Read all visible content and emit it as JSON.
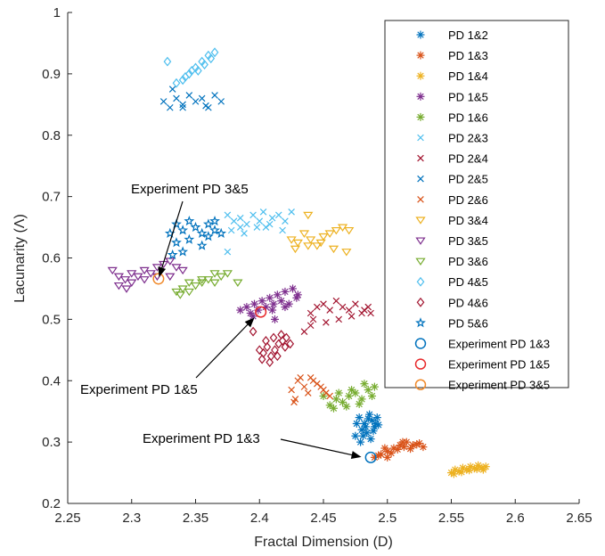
{
  "chart_data": {
    "type": "scatter",
    "xlabel": "Fractal Dimension (D)",
    "ylabel": "Lacunarity (Λ)",
    "xlim": [
      2.25,
      2.65
    ],
    "ylim": [
      0.2,
      1.0
    ],
    "xticks": [
      "2.25",
      "2.3",
      "2.35",
      "2.4",
      "2.45",
      "2.5",
      "2.55",
      "2.6",
      "2.65"
    ],
    "yticks": [
      "0.2",
      "0.3",
      "0.4",
      "0.5",
      "0.6",
      "0.7",
      "0.8",
      "0.9",
      "1"
    ],
    "grid": false,
    "legend_position": "top-right",
    "series": [
      {
        "name": "PD 1&2",
        "marker": "asterisk",
        "color": "#0072BD",
        "points": [
          [
            2.478,
            0.34
          ],
          [
            2.482,
            0.33
          ],
          [
            2.486,
            0.345
          ],
          [
            2.49,
            0.325
          ],
          [
            2.475,
            0.31
          ],
          [
            2.48,
            0.32
          ],
          [
            2.484,
            0.315
          ],
          [
            2.488,
            0.335
          ],
          [
            2.492,
            0.34
          ],
          [
            2.476,
            0.33
          ],
          [
            2.483,
            0.325
          ],
          [
            2.487,
            0.305
          ],
          [
            2.491,
            0.33
          ],
          [
            2.479,
            0.3
          ],
          [
            2.485,
            0.338
          ],
          [
            2.489,
            0.318
          ],
          [
            2.493,
            0.328
          ],
          [
            2.481,
            0.31
          ]
        ]
      },
      {
        "name": "PD 1&3",
        "marker": "asterisk",
        "color": "#D95319",
        "points": [
          [
            2.49,
            0.275
          ],
          [
            2.495,
            0.28
          ],
          [
            2.5,
            0.285
          ],
          [
            2.505,
            0.29
          ],
          [
            2.51,
            0.295
          ],
          [
            2.515,
            0.3
          ],
          [
            2.52,
            0.295
          ],
          [
            2.525,
            0.298
          ],
          [
            2.498,
            0.29
          ],
          [
            2.503,
            0.282
          ],
          [
            2.508,
            0.288
          ],
          [
            2.513,
            0.292
          ],
          [
            2.518,
            0.289
          ],
          [
            2.523,
            0.296
          ],
          [
            2.493,
            0.278
          ],
          [
            2.5,
            0.275
          ],
          [
            2.512,
            0.3
          ],
          [
            2.528,
            0.292
          ]
        ]
      },
      {
        "name": "PD 1&4",
        "marker": "asterisk",
        "color": "#EDB120",
        "points": [
          [
            2.55,
            0.25
          ],
          [
            2.553,
            0.255
          ],
          [
            2.556,
            0.252
          ],
          [
            2.559,
            0.258
          ],
          [
            2.562,
            0.255
          ],
          [
            2.565,
            0.26
          ],
          [
            2.568,
            0.257
          ],
          [
            2.571,
            0.262
          ],
          [
            2.574,
            0.258
          ],
          [
            2.577,
            0.26
          ],
          [
            2.552,
            0.248
          ],
          [
            2.558,
            0.251
          ],
          [
            2.564,
            0.254
          ],
          [
            2.57,
            0.256
          ],
          [
            2.575,
            0.255
          ]
        ]
      },
      {
        "name": "PD 1&5",
        "marker": "asterisk",
        "color": "#7E2F8E",
        "points": [
          [
            2.39,
            0.52
          ],
          [
            2.393,
            0.51
          ],
          [
            2.396,
            0.525
          ],
          [
            2.399,
            0.515
          ],
          [
            2.402,
            0.53
          ],
          [
            2.405,
            0.52
          ],
          [
            2.408,
            0.535
          ],
          [
            2.411,
            0.525
          ],
          [
            2.414,
            0.54
          ],
          [
            2.417,
            0.53
          ],
          [
            2.42,
            0.545
          ],
          [
            2.423,
            0.525
          ],
          [
            2.426,
            0.55
          ],
          [
            2.429,
            0.535
          ],
          [
            2.385,
            0.515
          ],
          [
            2.395,
            0.505
          ],
          [
            2.41,
            0.515
          ],
          [
            2.42,
            0.52
          ],
          [
            2.43,
            0.54
          ],
          [
            2.412,
            0.5
          ]
        ]
      },
      {
        "name": "PD 1&6",
        "marker": "asterisk",
        "color": "#77AC30",
        "points": [
          [
            2.455,
            0.36
          ],
          [
            2.46,
            0.37
          ],
          [
            2.465,
            0.365
          ],
          [
            2.47,
            0.375
          ],
          [
            2.475,
            0.38
          ],
          [
            2.48,
            0.37
          ],
          [
            2.485,
            0.385
          ],
          [
            2.49,
            0.39
          ],
          [
            2.458,
            0.355
          ],
          [
            2.468,
            0.358
          ],
          [
            2.478,
            0.362
          ],
          [
            2.488,
            0.375
          ],
          [
            2.462,
            0.38
          ],
          [
            2.472,
            0.385
          ],
          [
            2.482,
            0.395
          ],
          [
            2.45,
            0.375
          ]
        ]
      },
      {
        "name": "PD 2&3",
        "marker": "x",
        "color": "#4DBEEE",
        "points": [
          [
            2.375,
            0.67
          ],
          [
            2.38,
            0.66
          ],
          [
            2.385,
            0.665
          ],
          [
            2.39,
            0.655
          ],
          [
            2.395,
            0.67
          ],
          [
            2.4,
            0.66
          ],
          [
            2.405,
            0.65
          ],
          [
            2.41,
            0.665
          ],
          [
            2.415,
            0.67
          ],
          [
            2.42,
            0.66
          ],
          [
            2.425,
            0.675
          ],
          [
            2.378,
            0.645
          ],
          [
            2.388,
            0.64
          ],
          [
            2.398,
            0.65
          ],
          [
            2.408,
            0.655
          ],
          [
            2.418,
            0.645
          ],
          [
            2.375,
            0.61
          ],
          [
            2.385,
            0.65
          ],
          [
            2.403,
            0.675
          ]
        ]
      },
      {
        "name": "PD 2&4",
        "marker": "x",
        "color": "#A2142F",
        "points": [
          [
            2.44,
            0.51
          ],
          [
            2.445,
            0.52
          ],
          [
            2.45,
            0.525
          ],
          [
            2.455,
            0.515
          ],
          [
            2.46,
            0.53
          ],
          [
            2.465,
            0.52
          ],
          [
            2.47,
            0.515
          ],
          [
            2.475,
            0.525
          ],
          [
            2.48,
            0.51
          ],
          [
            2.485,
            0.52
          ],
          [
            2.442,
            0.5
          ],
          [
            2.452,
            0.495
          ],
          [
            2.462,
            0.5
          ],
          [
            2.472,
            0.505
          ],
          [
            2.435,
            0.48
          ],
          [
            2.44,
            0.49
          ],
          [
            2.482,
            0.515
          ],
          [
            2.487,
            0.51
          ]
        ]
      },
      {
        "name": "PD 2&5",
        "marker": "x",
        "color": "#0072BD",
        "points": [
          [
            2.325,
            0.855
          ],
          [
            2.33,
            0.845
          ],
          [
            2.335,
            0.86
          ],
          [
            2.34,
            0.85
          ],
          [
            2.345,
            0.865
          ],
          [
            2.35,
            0.855
          ],
          [
            2.355,
            0.86
          ],
          [
            2.36,
            0.845
          ],
          [
            2.365,
            0.865
          ],
          [
            2.37,
            0.855
          ],
          [
            2.332,
            0.875
          ],
          [
            2.34,
            0.845
          ],
          [
            2.358,
            0.848
          ]
        ]
      },
      {
        "name": "PD 2&6",
        "marker": "x",
        "color": "#D95319",
        "points": [
          [
            2.425,
            0.385
          ],
          [
            2.43,
            0.4
          ],
          [
            2.435,
            0.39
          ],
          [
            2.44,
            0.405
          ],
          [
            2.445,
            0.395
          ],
          [
            2.45,
            0.385
          ],
          [
            2.455,
            0.375
          ],
          [
            2.428,
            0.37
          ],
          [
            2.438,
            0.38
          ],
          [
            2.448,
            0.39
          ],
          [
            2.432,
            0.405
          ],
          [
            2.442,
            0.4
          ],
          [
            2.452,
            0.38
          ],
          [
            2.427,
            0.365
          ]
        ]
      },
      {
        "name": "PD 3&4",
        "marker": "triangle-down",
        "color": "#EDB120",
        "points": [
          [
            2.425,
            0.63
          ],
          [
            2.43,
            0.625
          ],
          [
            2.435,
            0.64
          ],
          [
            2.44,
            0.63
          ],
          [
            2.445,
            0.62
          ],
          [
            2.45,
            0.635
          ],
          [
            2.455,
            0.64
          ],
          [
            2.46,
            0.645
          ],
          [
            2.465,
            0.65
          ],
          [
            2.47,
            0.645
          ],
          [
            2.428,
            0.615
          ],
          [
            2.438,
            0.62
          ],
          [
            2.448,
            0.625
          ],
          [
            2.458,
            0.615
          ],
          [
            2.468,
            0.61
          ],
          [
            2.438,
            0.67
          ]
        ]
      },
      {
        "name": "PD 3&5",
        "marker": "triangle-down",
        "color": "#7E2F8E",
        "points": [
          [
            2.285,
            0.58
          ],
          [
            2.29,
            0.57
          ],
          [
            2.295,
            0.565
          ],
          [
            2.3,
            0.575
          ],
          [
            2.305,
            0.57
          ],
          [
            2.31,
            0.58
          ],
          [
            2.315,
            0.575
          ],
          [
            2.32,
            0.585
          ],
          [
            2.325,
            0.59
          ],
          [
            2.33,
            0.595
          ],
          [
            2.335,
            0.585
          ],
          [
            2.29,
            0.555
          ],
          [
            2.3,
            0.56
          ],
          [
            2.31,
            0.565
          ],
          [
            2.32,
            0.57
          ],
          [
            2.33,
            0.57
          ],
          [
            2.34,
            0.58
          ],
          [
            2.296,
            0.55
          ]
        ]
      },
      {
        "name": "PD 3&6",
        "marker": "triangle-down",
        "color": "#77AC30",
        "points": [
          [
            2.335,
            0.545
          ],
          [
            2.34,
            0.55
          ],
          [
            2.345,
            0.545
          ],
          [
            2.35,
            0.555
          ],
          [
            2.355,
            0.56
          ],
          [
            2.36,
            0.565
          ],
          [
            2.365,
            0.56
          ],
          [
            2.37,
            0.57
          ],
          [
            2.375,
            0.575
          ],
          [
            2.345,
            0.56
          ],
          [
            2.355,
            0.565
          ],
          [
            2.365,
            0.575
          ],
          [
            2.338,
            0.54
          ],
          [
            2.383,
            0.56
          ]
        ]
      },
      {
        "name": "PD 4&5",
        "marker": "diamond",
        "color": "#4DBEEE",
        "points": [
          [
            2.335,
            0.885
          ],
          [
            2.34,
            0.89
          ],
          [
            2.345,
            0.9
          ],
          [
            2.35,
            0.91
          ],
          [
            2.355,
            0.92
          ],
          [
            2.36,
            0.93
          ],
          [
            2.365,
            0.935
          ],
          [
            2.352,
            0.905
          ],
          [
            2.357,
            0.915
          ],
          [
            2.362,
            0.925
          ],
          [
            2.342,
            0.895
          ],
          [
            2.347,
            0.905
          ],
          [
            2.328,
            0.92
          ]
        ]
      },
      {
        "name": "PD 4&6",
        "marker": "diamond",
        "color": "#A2142F",
        "points": [
          [
            2.4,
            0.45
          ],
          [
            2.403,
            0.445
          ],
          [
            2.406,
            0.455
          ],
          [
            2.409,
            0.44
          ],
          [
            2.412,
            0.45
          ],
          [
            2.415,
            0.46
          ],
          [
            2.418,
            0.465
          ],
          [
            2.421,
            0.47
          ],
          [
            2.424,
            0.46
          ],
          [
            2.402,
            0.435
          ],
          [
            2.408,
            0.43
          ],
          [
            2.414,
            0.44
          ],
          [
            2.411,
            0.47
          ],
          [
            2.417,
            0.475
          ],
          [
            2.395,
            0.48
          ],
          [
            2.42,
            0.455
          ],
          [
            2.405,
            0.465
          ]
        ]
      },
      {
        "name": "PD 5&6",
        "marker": "star",
        "color": "#0072BD",
        "points": [
          [
            2.33,
            0.64
          ],
          [
            2.335,
            0.655
          ],
          [
            2.34,
            0.645
          ],
          [
            2.345,
            0.66
          ],
          [
            2.35,
            0.65
          ],
          [
            2.355,
            0.64
          ],
          [
            2.36,
            0.655
          ],
          [
            2.365,
            0.645
          ],
          [
            2.335,
            0.625
          ],
          [
            2.345,
            0.63
          ],
          [
            2.355,
            0.62
          ],
          [
            2.36,
            0.635
          ],
          [
            2.34,
            0.61
          ],
          [
            2.365,
            0.66
          ],
          [
            2.37,
            0.64
          ],
          [
            2.332,
            0.605
          ]
        ]
      },
      {
        "name": "Experiment PD 1&3",
        "marker": "circle",
        "color": "#0072BD",
        "points": [
          [
            2.487,
            0.275
          ]
        ]
      },
      {
        "name": "Experiment PD 1&5",
        "marker": "circle",
        "color": "#E8292B",
        "points": [
          [
            2.401,
            0.512
          ]
        ]
      },
      {
        "name": "Experiment PD 3&5",
        "marker": "circle",
        "color": "#F0892A",
        "points": [
          [
            2.321,
            0.566
          ]
        ]
      }
    ],
    "annotations": [
      {
        "text": "Experiment PD 3&5",
        "target": [
          2.321,
          0.566
        ]
      },
      {
        "text": "Experiment PD 1&5",
        "target": [
          2.397,
          0.505
        ]
      },
      {
        "text": "Experiment PD 1&3",
        "target": [
          2.481,
          0.275
        ]
      }
    ]
  }
}
